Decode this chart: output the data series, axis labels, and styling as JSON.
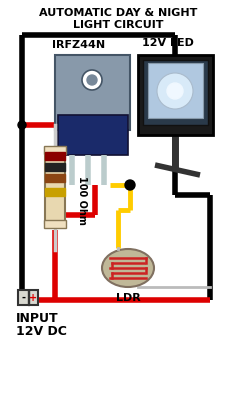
{
  "title_line1": "AUTOMATIC DAY & NIGHT",
  "title_line2": "LIGHT CIRCUIT",
  "bg_color": "#ffffff",
  "wire_black": "#000000",
  "wire_red": "#dd0000",
  "wire_yellow": "#ffcc00",
  "label_irfz44n": "IRFZ44N",
  "label_led": "12V LED",
  "label_resistor": "100 Ohm",
  "label_ldr": "LDR",
  "label_input": "INPUT",
  "label_12vdc": "12V DC",
  "label_minus": "-",
  "label_plus": "+",
  "fig_width": 2.36,
  "fig_height": 4.19,
  "dpi": 100
}
